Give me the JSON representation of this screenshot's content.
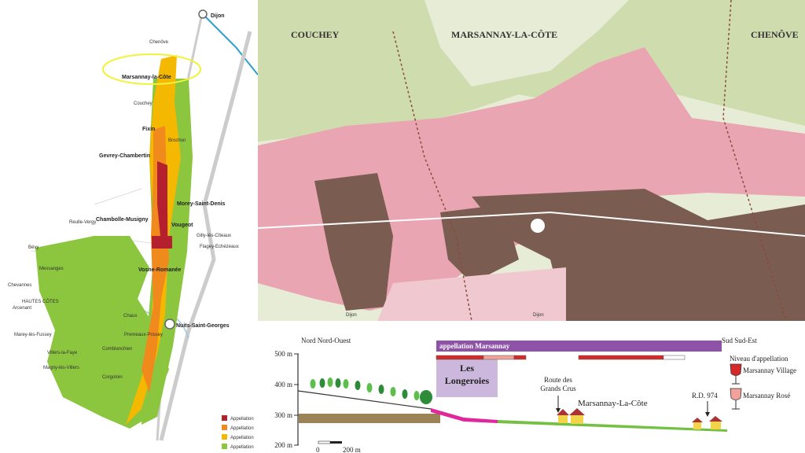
{
  "left_map": {
    "places": [
      "Dijon",
      "Chenôve",
      "Marsannay-la-Côte",
      "Couchey",
      "Fixin",
      "Brochon",
      "Gevrey-Chambertin",
      "Morey-Saint-Denis",
      "Chambolle-Musigny",
      "Vougeot",
      "Gilly-lès-Cîteaux",
      "Flagey-Echézeaux",
      "Vosne-Romanée",
      "Nuits-Saint-Georges",
      "Reulle-Vergy",
      "Bévy",
      "Messanges",
      "Chevannes",
      "HAUTES CÔTES",
      "Arcenant",
      "Chaux",
      "Premeaux-Prissey",
      "Comblanchien",
      "Marey-lès-Fussey",
      "Villers-la-Faye",
      "Magny-lès-Villers",
      "Corgoloin"
    ],
    "highlight_color": "#f2f23a",
    "legend": [
      {
        "label": "Appellation",
        "color": "#b5202e"
      },
      {
        "label": "Appellation",
        "color": "#f08a1c"
      },
      {
        "label": "Appellation",
        "color": "#f5b800"
      },
      {
        "label": "Appellation",
        "color": "#8cc63f"
      }
    ]
  },
  "top_map": {
    "towns": [
      "COUCHEY",
      "MARSANNAY-LA-CÔTE",
      "CHENÔVE"
    ],
    "road_labels": [
      "Dijon",
      "Dijon"
    ],
    "vineyard_color": "#eaa5b3",
    "urban_color": "#7a5c50"
  },
  "profile": {
    "left_direction": "Nord Nord-Ouest",
    "right_direction": "Sud Sud-Est",
    "y_ticks": [
      "500 m",
      "400 m",
      "300 m",
      "200 m"
    ],
    "appellation_bar": "appellation Marsannay",
    "lieu_dit": [
      "Les",
      "Longeroies"
    ],
    "route": [
      "Route des",
      "Grands Crus"
    ],
    "village": "Marsannay-La-Côte",
    "road": "R.D. 974",
    "scale": [
      "0",
      "200 m"
    ],
    "legend_title": "Niveau d'appellation",
    "legend": [
      {
        "label": "Marsannay Village",
        "color": "#d42a2a"
      },
      {
        "label": "Marsannay Rosé",
        "color": "#f2a29a"
      }
    ]
  }
}
